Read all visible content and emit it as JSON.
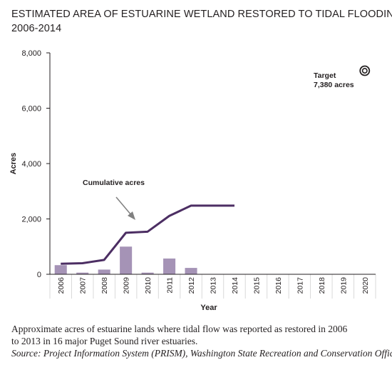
{
  "title": {
    "line1": "ESTIMATED AREA OF ESTUARINE WETLAND RESTORED TO TIDAL FLOODING",
    "line2": "2006-2014"
  },
  "caption": {
    "line1": "Approximate acres of estuarine lands where tidal flow was reported as restored in 2006",
    "line2": "to 2013 in 16 major Puget Sound river estuaries.",
    "source": "Source: Project Information System (PRISM), Washington State Recreation and Conservation Office"
  },
  "chart_data": {
    "type": "bar",
    "xlabel": "Year",
    "ylabel": "Acres",
    "ylim": [
      0,
      8000
    ],
    "yticks": [
      0,
      2000,
      4000,
      6000,
      8000
    ],
    "ytick_labels": [
      "0",
      "2,000",
      "4,000",
      "6,000",
      "8,000"
    ],
    "categories": [
      "2006",
      "2007",
      "2008",
      "2009",
      "2010",
      "2011",
      "2012",
      "2013",
      "2014",
      "2015",
      "2016",
      "2017",
      "2018",
      "2019",
      "2020"
    ],
    "annual_acres": [
      330,
      60,
      170,
      1000,
      60,
      570,
      230,
      null,
      null,
      null,
      null,
      null,
      null,
      null,
      null
    ],
    "cumulative_acres": [
      380,
      400,
      520,
      1500,
      1540,
      2110,
      2480,
      2480,
      2480,
      null,
      null,
      null,
      null,
      null,
      null
    ],
    "cumulative_label": "Cumulative acres",
    "target": {
      "label_line1": "Target",
      "label_line2": "7,380 acres",
      "year": "2020",
      "value": 7380
    },
    "colors": {
      "bar": "#a593b6",
      "line": "#4c2e63",
      "axis": "#231f20",
      "grid": "#d9d9d9"
    }
  }
}
